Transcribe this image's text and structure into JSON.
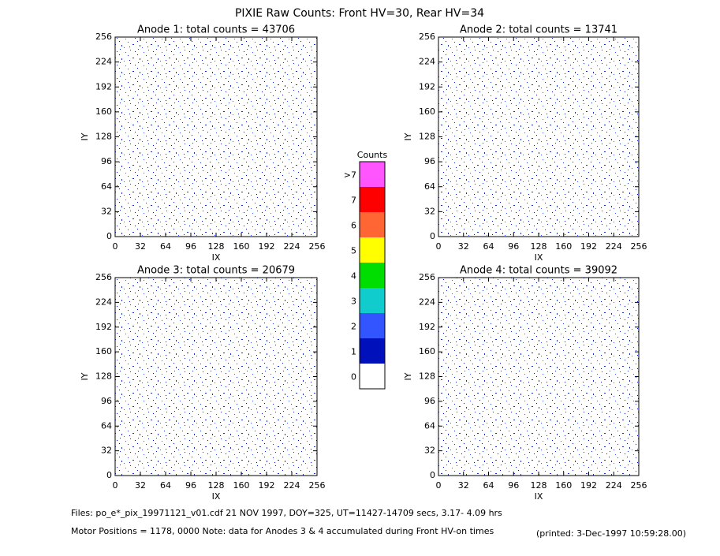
{
  "title": "PIXIE Raw Counts:  Front HV=30, Rear HV=34",
  "chart_data": [
    {
      "type": "heatmap",
      "title": "Anode 1: total counts = 43706",
      "xlabel": "IX",
      "ylabel": "IY",
      "xlim": [
        0,
        256
      ],
      "ylim": [
        0,
        256
      ],
      "xticks": [
        0,
        32,
        64,
        96,
        128,
        160,
        192,
        224,
        256
      ],
      "yticks": [
        0,
        32,
        64,
        96,
        128,
        160,
        192,
        224,
        256
      ]
    },
    {
      "type": "heatmap",
      "title": "Anode 2: total counts = 13741",
      "xlabel": "IX",
      "ylabel": "IY",
      "xlim": [
        0,
        256
      ],
      "ylim": [
        0,
        256
      ],
      "xticks": [
        0,
        32,
        64,
        96,
        128,
        160,
        192,
        224,
        256
      ],
      "yticks": [
        0,
        32,
        64,
        96,
        128,
        160,
        192,
        224,
        256
      ]
    },
    {
      "type": "heatmap",
      "title": "Anode 3: total counts = 20679",
      "xlabel": "IX",
      "ylabel": "IY",
      "xlim": [
        0,
        256
      ],
      "ylim": [
        0,
        256
      ],
      "xticks": [
        0,
        32,
        64,
        96,
        128,
        160,
        192,
        224,
        256
      ],
      "yticks": [
        0,
        32,
        64,
        96,
        128,
        160,
        192,
        224,
        256
      ]
    },
    {
      "type": "heatmap",
      "title": "Anode 4: total counts = 39092",
      "xlabel": "IX",
      "ylabel": "IY",
      "xlim": [
        0,
        256
      ],
      "ylim": [
        0,
        256
      ],
      "xticks": [
        0,
        32,
        64,
        96,
        128,
        160,
        192,
        224,
        256
      ],
      "yticks": [
        0,
        32,
        64,
        96,
        128,
        160,
        192,
        224,
        256
      ]
    }
  ],
  "colorbar": {
    "title": "Counts",
    "labels": [
      "0",
      "1",
      "2",
      "3",
      "4",
      "5",
      "6",
      "7",
      ">7"
    ],
    "colors": [
      "#ffffff",
      "#0011bb",
      "#3355ff",
      "#11cccc",
      "#00dd00",
      "#ffff00",
      "#ff6633",
      "#ff0000",
      "#ff55ff"
    ]
  },
  "footer": {
    "files": "Files: po_e*_pix_19971121_v01.cdf   21 NOV 1997, DOY=325, UT=11427-14709 secs,  3.17- 4.09 hrs",
    "motor": "Motor Positions = 1178, 0000   Note: data for Anodes 3 & 4 accumulated during Front HV-on times",
    "printed": "(printed:  3-Dec-1997 10:59:28.00)"
  }
}
